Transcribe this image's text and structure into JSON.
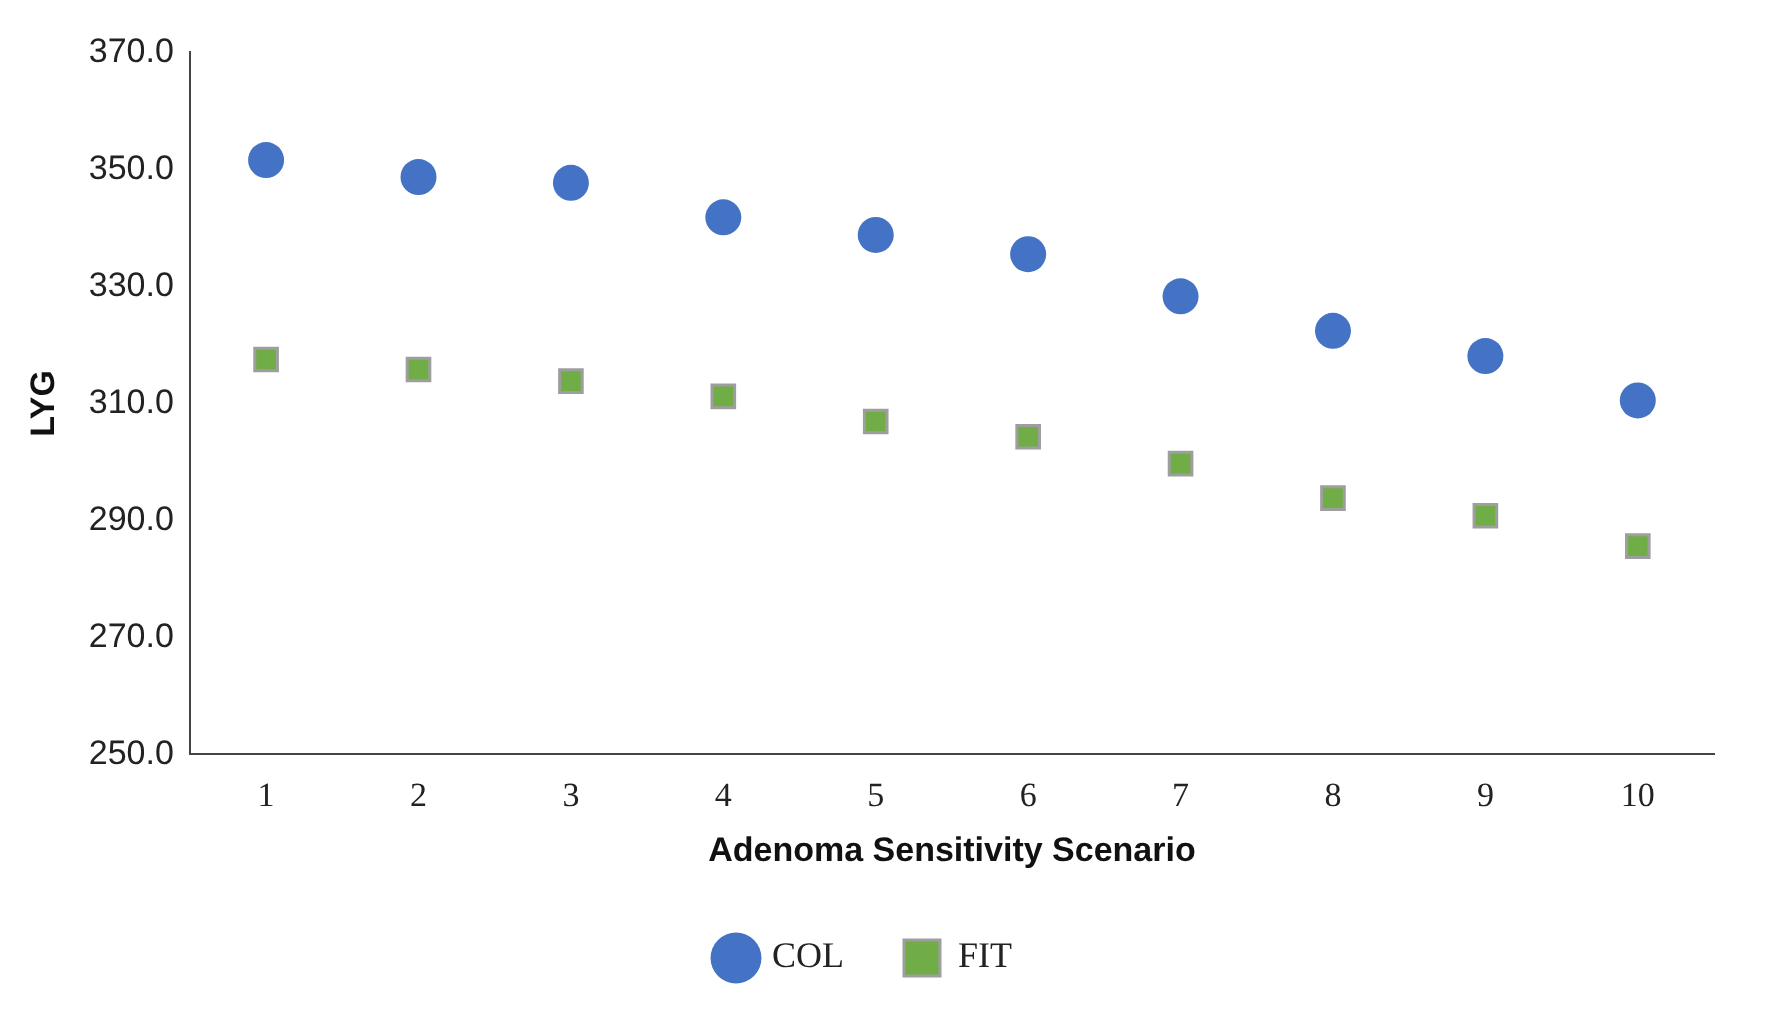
{
  "chart_data": {
    "type": "scatter",
    "xlabel": "Adenoma Sensitivity Scenario",
    "ylabel": "LYG",
    "categories": [
      "1",
      "2",
      "3",
      "4",
      "5",
      "6",
      "7",
      "8",
      "9",
      "10"
    ],
    "series": [
      {
        "name": "COL",
        "color": "#4472c4",
        "marker": "circle",
        "values": [
          351.6,
          348.7,
          347.7,
          341.8,
          338.8,
          335.5,
          328.3,
          322.4,
          318.1,
          310.5
        ]
      },
      {
        "name": "FIT",
        "color": "#70ad47",
        "marker": "square",
        "values": [
          317.5,
          315.8,
          313.8,
          311.2,
          306.9,
          304.3,
          299.7,
          293.8,
          290.8,
          285.6
        ]
      }
    ],
    "ylim": [
      250,
      370
    ],
    "yticks": [
      {
        "value": 250,
        "label": "250.0"
      },
      {
        "value": 270,
        "label": "270.0"
      },
      {
        "value": 290,
        "label": "290.0"
      },
      {
        "value": 310,
        "label": "310.0"
      },
      {
        "value": 330,
        "label": "330.0"
      },
      {
        "value": 350,
        "label": "350.0"
      },
      {
        "value": 370,
        "label": "370.0"
      }
    ],
    "grid": false,
    "legend": "bottom"
  }
}
